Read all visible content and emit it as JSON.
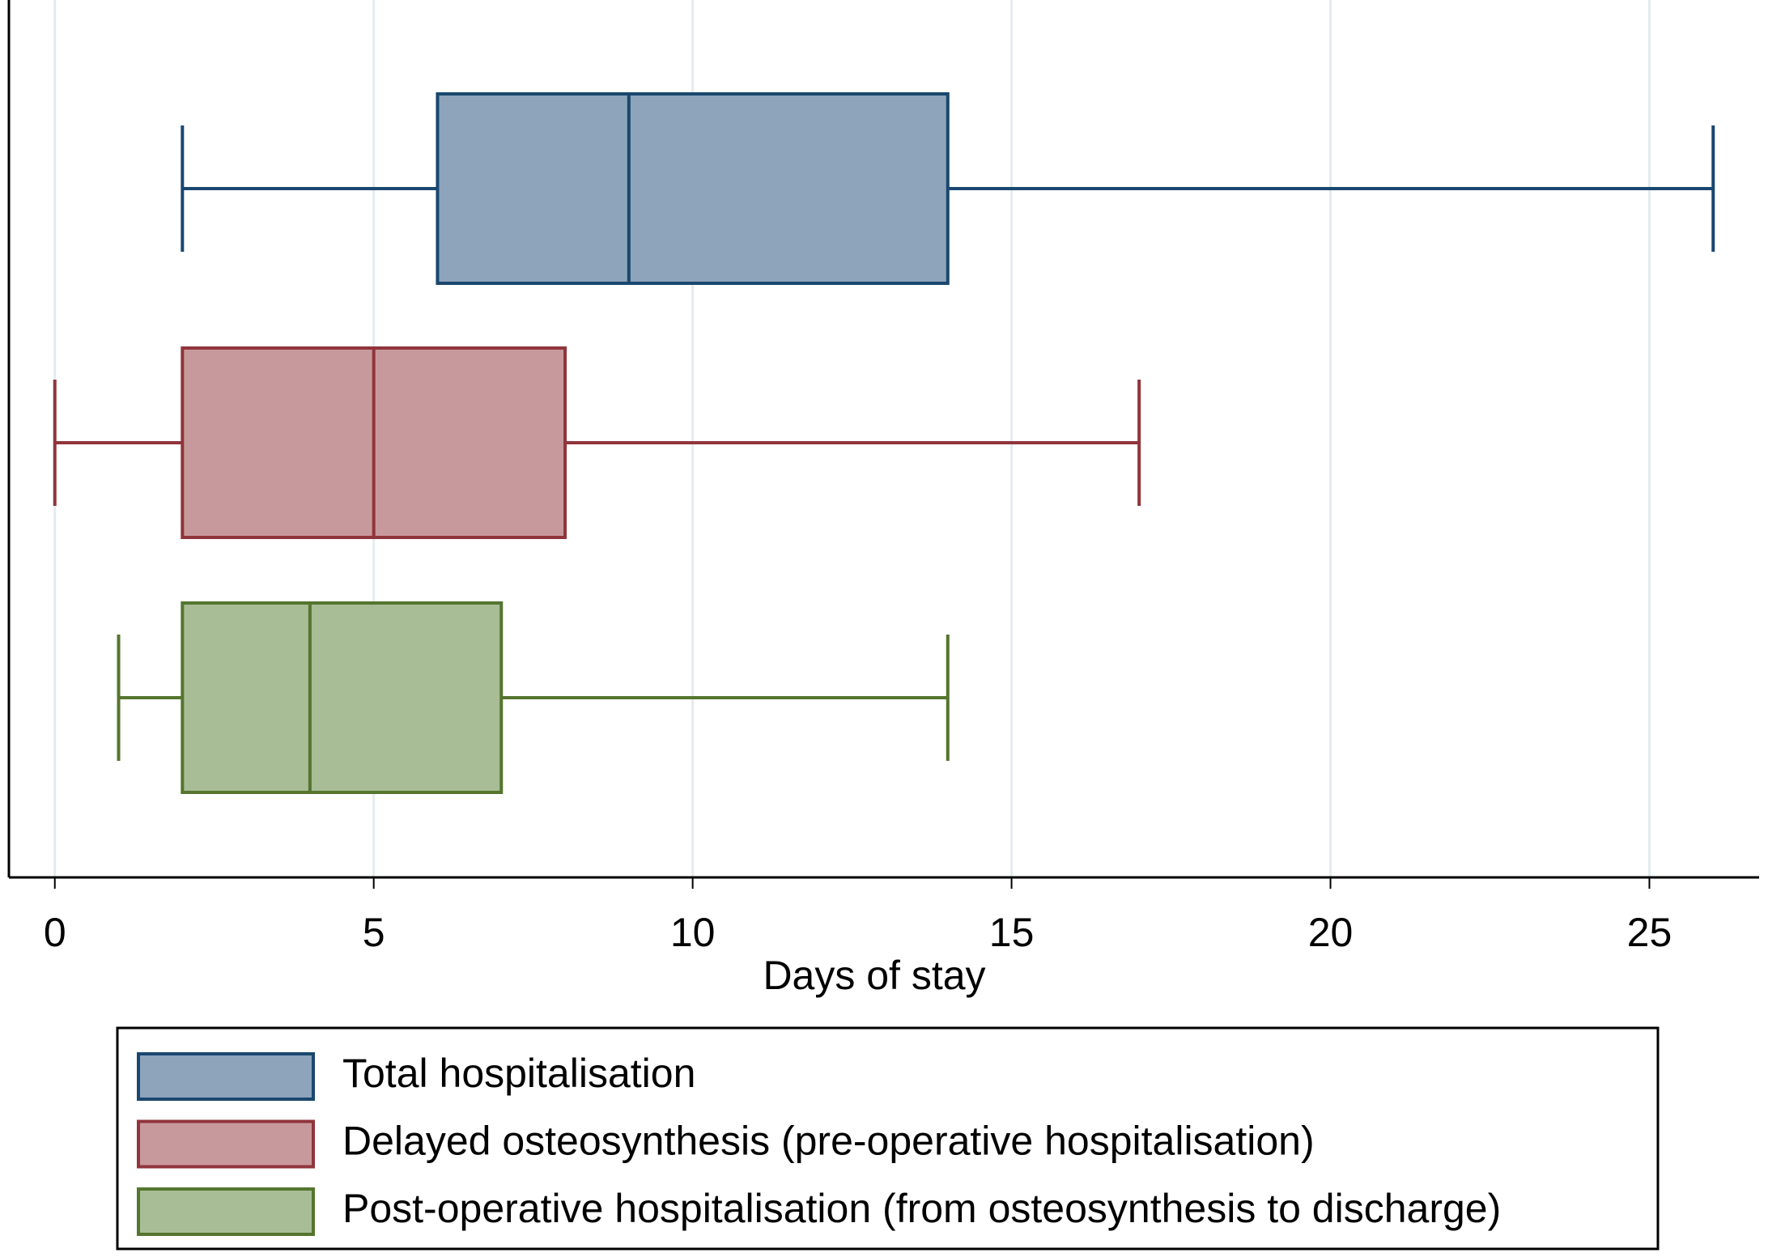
{
  "chart_data": {
    "type": "box",
    "orientation": "horizontal",
    "x_label": "Days of stay",
    "xlim": [
      -0.72,
      26.72
    ],
    "xticks": [
      0,
      5,
      10,
      15,
      20,
      25
    ],
    "grid": true,
    "legend": "bottom",
    "series": [
      {
        "name": "Total hospitalisation",
        "color": "#1a476f",
        "fill": "#8ea4bb",
        "min": 2,
        "q1": 6,
        "median": 9,
        "q3": 14,
        "max": 26
      },
      {
        "name": "Delayed osteosynthesis (pre-operative hospitalisation)",
        "color": "#90353b",
        "fill": "#c8999c",
        "min": 0,
        "q1": 2,
        "median": 5,
        "q3": 8,
        "max": 17
      },
      {
        "name": "Post-operative hospitalisation (from osteosynthesis to discharge)",
        "color": "#55752f",
        "fill": "#a8bd95",
        "min": 1,
        "q1": 2,
        "median": 4,
        "q3": 7,
        "max": 14
      }
    ]
  }
}
